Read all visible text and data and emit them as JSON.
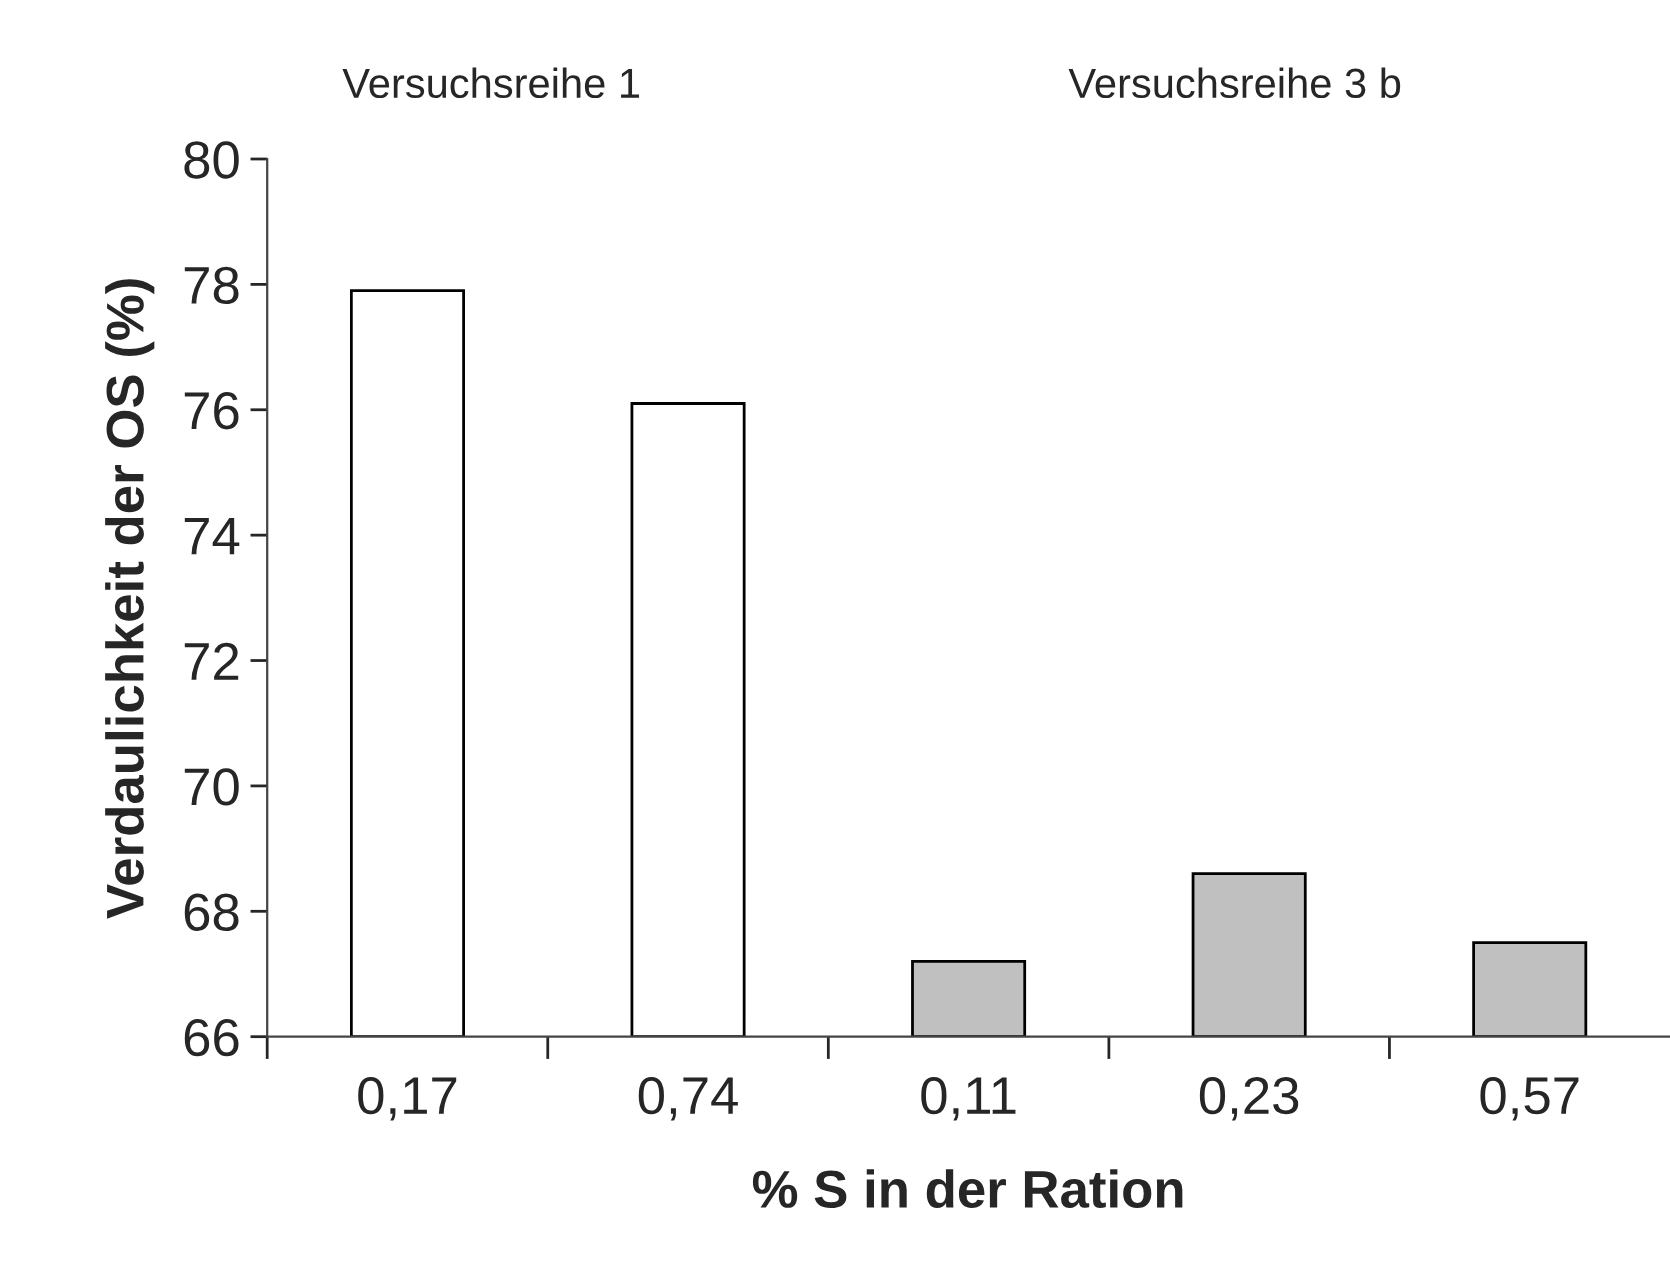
{
  "chart_data": {
    "type": "bar",
    "categories": [
      "0,17",
      "0,74",
      "0,11",
      "0,23",
      "0,57"
    ],
    "values": [
      77.9,
      76.1,
      67.2,
      68.6,
      67.5
    ],
    "colors": [
      "#ffffff",
      "#ffffff",
      "#c0c0c0",
      "#c0c0c0",
      "#c0c0c0"
    ],
    "xlabel": "% S in der Ration",
    "ylabel": "Verdaulichkeit der OS (%)",
    "ylim": [
      66,
      80
    ],
    "yticks": [
      66,
      68,
      70,
      72,
      74,
      76,
      78,
      80
    ],
    "annotations": [
      "Versuchsreihe 1",
      "Versuchsreihe 3 b"
    ],
    "grid": false,
    "legend": false
  }
}
